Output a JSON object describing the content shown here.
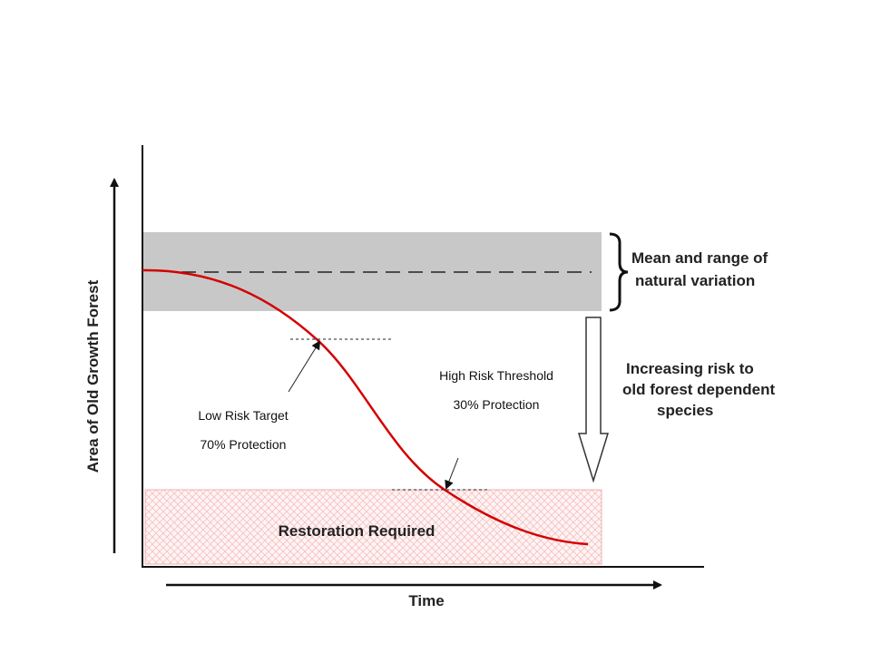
{
  "y_axis_label": "Area of Old Growth Forest",
  "x_axis_label": "Time",
  "band_label": [
    "Mean and range of",
    "natural variation"
  ],
  "risk_label": [
    "Increasing risk to",
    "old forest dependent",
    "species"
  ],
  "high_risk": {
    "title": "High  Risk Threshold",
    "protection": "30% Protection"
  },
  "low_risk": {
    "title": "Low Risk Target",
    "protection": "70% Protection"
  },
  "restoration_label": "Restoration Required"
}
